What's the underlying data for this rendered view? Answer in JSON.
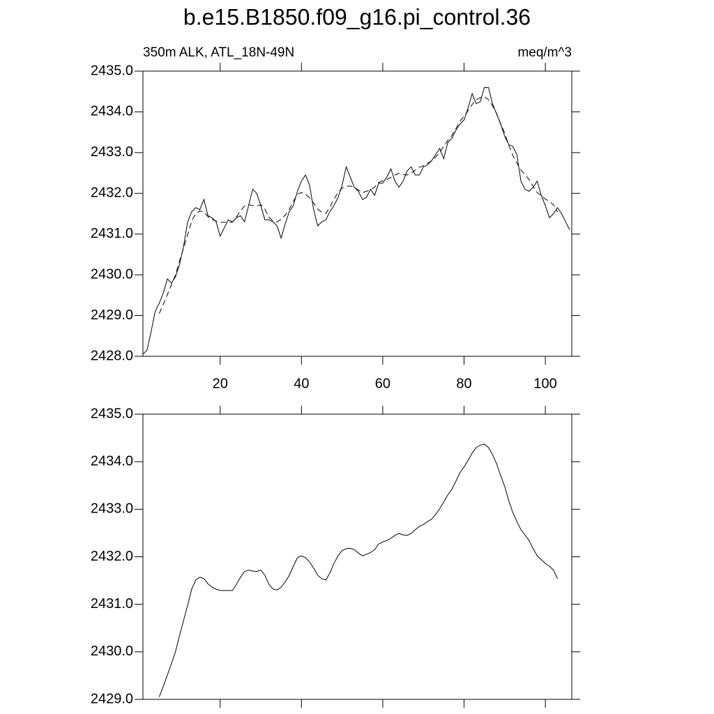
{
  "chart_data": [
    {
      "type": "line",
      "title": "b.e15.B1850.f09_g16.pi_control.36",
      "subtitle_left": "350m ALK, ATL_18N-49N",
      "subtitle_right": "meq/m^3",
      "x": [
        1,
        2,
        3,
        4,
        5,
        6,
        7,
        8,
        9,
        10,
        11,
        12,
        13,
        14,
        15,
        16,
        17,
        18,
        19,
        20,
        21,
        22,
        23,
        24,
        25,
        26,
        27,
        28,
        29,
        30,
        31,
        32,
        33,
        34,
        35,
        36,
        37,
        38,
        39,
        40,
        41,
        42,
        43,
        44,
        45,
        46,
        47,
        48,
        49,
        50,
        51,
        52,
        53,
        54,
        55,
        56,
        57,
        58,
        59,
        60,
        61,
        62,
        63,
        64,
        65,
        66,
        67,
        68,
        69,
        70,
        71,
        72,
        73,
        74,
        75,
        76,
        77,
        78,
        79,
        80,
        81,
        82,
        83,
        84,
        85,
        86,
        87,
        88,
        89,
        90,
        91,
        92,
        93,
        94,
        95,
        96,
        97,
        98,
        99,
        100,
        101,
        102,
        103,
        104,
        105,
        106
      ],
      "xlim": [
        1,
        106.5
      ],
      "xticks": [
        20,
        40,
        60,
        80,
        100
      ],
      "ylim": [
        2428,
        2435
      ],
      "yticks": [
        {
          "value": 2428,
          "label": "2428.0"
        },
        {
          "value": 2429,
          "label": "2429.0"
        },
        {
          "value": 2430,
          "label": "2430.0"
        },
        {
          "value": 2431,
          "label": "2431.0"
        },
        {
          "value": 2432,
          "label": "2432.0"
        },
        {
          "value": 2433,
          "label": "2433.0"
        },
        {
          "value": 2434,
          "label": "2434.0"
        },
        {
          "value": 2435,
          "label": "2435.0"
        }
      ],
      "series": [
        {
          "color": "#000000",
          "dashed": false,
          "values": [
            2428.05,
            2428.15,
            2428.6,
            2429.1,
            2429.3,
            2429.55,
            2429.9,
            2429.8,
            2429.95,
            2430.25,
            2430.7,
            2431.3,
            2431.55,
            2431.65,
            2431.6,
            2431.85,
            2431.45,
            2431.4,
            2431.3,
            2430.95,
            2431.15,
            2431.35,
            2431.3,
            2431.4,
            2431.45,
            2431.3,
            2431.7,
            2432.1,
            2432.0,
            2431.7,
            2431.35,
            2431.35,
            2431.3,
            2431.2,
            2430.9,
            2431.25,
            2431.55,
            2431.7,
            2432.05,
            2432.3,
            2432.45,
            2432.2,
            2431.6,
            2431.2,
            2431.3,
            2431.35,
            2431.55,
            2431.7,
            2431.9,
            2432.2,
            2432.65,
            2432.4,
            2432.15,
            2432.05,
            2431.85,
            2431.9,
            2432.1,
            2431.95,
            2432.25,
            2432.25,
            2432.4,
            2432.6,
            2432.3,
            2432.15,
            2432.3,
            2432.55,
            2432.65,
            2432.45,
            2432.45,
            2432.65,
            2432.7,
            2432.8,
            2432.95,
            2433.1,
            2432.85,
            2433.25,
            2433.35,
            2433.55,
            2433.7,
            2433.8,
            2434.1,
            2434.45,
            2434.2,
            2434.25,
            2434.6,
            2434.6,
            2434.2,
            2433.95,
            2433.7,
            2433.4,
            2433.2,
            2433.15,
            2432.95,
            2432.3,
            2432.1,
            2432.05,
            2432.15,
            2432.3,
            2431.95,
            2431.7,
            2431.4,
            2431.5,
            2431.65,
            2431.5,
            2431.3,
            2431.1
          ]
        },
        {
          "color": "#000000",
          "dashed": true,
          "values": [
            null,
            null,
            null,
            null,
            2429.05,
            2429.27,
            2429.51,
            2429.75,
            2430.0,
            2430.34,
            2430.66,
            2430.98,
            2431.32,
            2431.51,
            2431.57,
            2431.54,
            2431.43,
            2431.36,
            2431.32,
            2431.29,
            2431.29,
            2431.29,
            2431.29,
            2431.42,
            2431.57,
            2431.69,
            2431.72,
            2431.7,
            2431.69,
            2431.72,
            2431.61,
            2431.42,
            2431.32,
            2431.3,
            2431.36,
            2431.47,
            2431.61,
            2431.8,
            2431.98,
            2432.02,
            2431.98,
            2431.89,
            2431.76,
            2431.61,
            2431.54,
            2431.51,
            2431.66,
            2431.86,
            2432.02,
            2432.13,
            2432.17,
            2432.18,
            2432.15,
            2432.08,
            2432.02,
            2432.05,
            2432.09,
            2432.15,
            2432.27,
            2432.31,
            2432.34,
            2432.39,
            2432.45,
            2432.49,
            2432.46,
            2432.45,
            2432.49,
            2432.57,
            2432.64,
            2432.68,
            2432.74,
            2432.79,
            2432.89,
            2433.01,
            2433.15,
            2433.3,
            2433.42,
            2433.59,
            2433.77,
            2433.89,
            2434.03,
            2434.18,
            2434.3,
            2434.35,
            2434.37,
            2434.3,
            2434.15,
            2433.96,
            2433.71,
            2433.48,
            2433.18,
            2432.93,
            2432.74,
            2432.57,
            2432.46,
            2432.34,
            2432.17,
            2432.02,
            2431.94,
            2431.86,
            2431.8,
            2431.72,
            2431.54,
            null,
            null,
            null
          ]
        }
      ]
    },
    {
      "type": "line",
      "x": [
        1,
        2,
        3,
        4,
        5,
        6,
        7,
        8,
        9,
        10,
        11,
        12,
        13,
        14,
        15,
        16,
        17,
        18,
        19,
        20,
        21,
        22,
        23,
        24,
        25,
        26,
        27,
        28,
        29,
        30,
        31,
        32,
        33,
        34,
        35,
        36,
        37,
        38,
        39,
        40,
        41,
        42,
        43,
        44,
        45,
        46,
        47,
        48,
        49,
        50,
        51,
        52,
        53,
        54,
        55,
        56,
        57,
        58,
        59,
        60,
        61,
        62,
        63,
        64,
        65,
        66,
        67,
        68,
        69,
        70,
        71,
        72,
        73,
        74,
        75,
        76,
        77,
        78,
        79,
        80,
        81,
        82,
        83,
        84,
        85,
        86,
        87,
        88,
        89,
        90,
        91,
        92,
        93,
        94,
        95,
        96,
        97,
        98,
        99,
        100,
        101,
        102,
        103,
        104,
        105,
        106
      ],
      "xlim": [
        1,
        106.5
      ],
      "xticks": [
        20,
        40,
        60,
        80,
        100
      ],
      "ylim": [
        2429,
        2435
      ],
      "yticks": [
        {
          "value": 2429,
          "label": "2429.0"
        },
        {
          "value": 2430,
          "label": "2430.0"
        },
        {
          "value": 2431,
          "label": "2431.0"
        },
        {
          "value": 2432,
          "label": "2432.0"
        },
        {
          "value": 2433,
          "label": "2433.0"
        },
        {
          "value": 2434,
          "label": "2434.0"
        },
        {
          "value": 2435,
          "label": "2435.0"
        }
      ],
      "series": [
        {
          "color": "#000000",
          "dashed": false,
          "values": [
            null,
            null,
            null,
            null,
            2429.05,
            2429.27,
            2429.51,
            2429.75,
            2430.0,
            2430.34,
            2430.66,
            2430.98,
            2431.32,
            2431.51,
            2431.57,
            2431.54,
            2431.43,
            2431.36,
            2431.32,
            2431.29,
            2431.29,
            2431.29,
            2431.29,
            2431.42,
            2431.57,
            2431.69,
            2431.72,
            2431.7,
            2431.69,
            2431.72,
            2431.61,
            2431.42,
            2431.32,
            2431.3,
            2431.36,
            2431.47,
            2431.61,
            2431.8,
            2431.98,
            2432.02,
            2431.98,
            2431.89,
            2431.76,
            2431.61,
            2431.54,
            2431.51,
            2431.66,
            2431.86,
            2432.02,
            2432.13,
            2432.17,
            2432.18,
            2432.15,
            2432.08,
            2432.02,
            2432.05,
            2432.09,
            2432.15,
            2432.27,
            2432.31,
            2432.34,
            2432.39,
            2432.45,
            2432.49,
            2432.46,
            2432.45,
            2432.49,
            2432.57,
            2432.64,
            2432.68,
            2432.74,
            2432.79,
            2432.89,
            2433.01,
            2433.15,
            2433.3,
            2433.42,
            2433.59,
            2433.77,
            2433.89,
            2434.03,
            2434.18,
            2434.3,
            2434.35,
            2434.37,
            2434.3,
            2434.15,
            2433.96,
            2433.71,
            2433.48,
            2433.18,
            2432.93,
            2432.74,
            2432.57,
            2432.46,
            2432.34,
            2432.17,
            2432.02,
            2431.94,
            2431.86,
            2431.8,
            2431.72,
            2431.54,
            null,
            null,
            null
          ]
        }
      ]
    }
  ]
}
